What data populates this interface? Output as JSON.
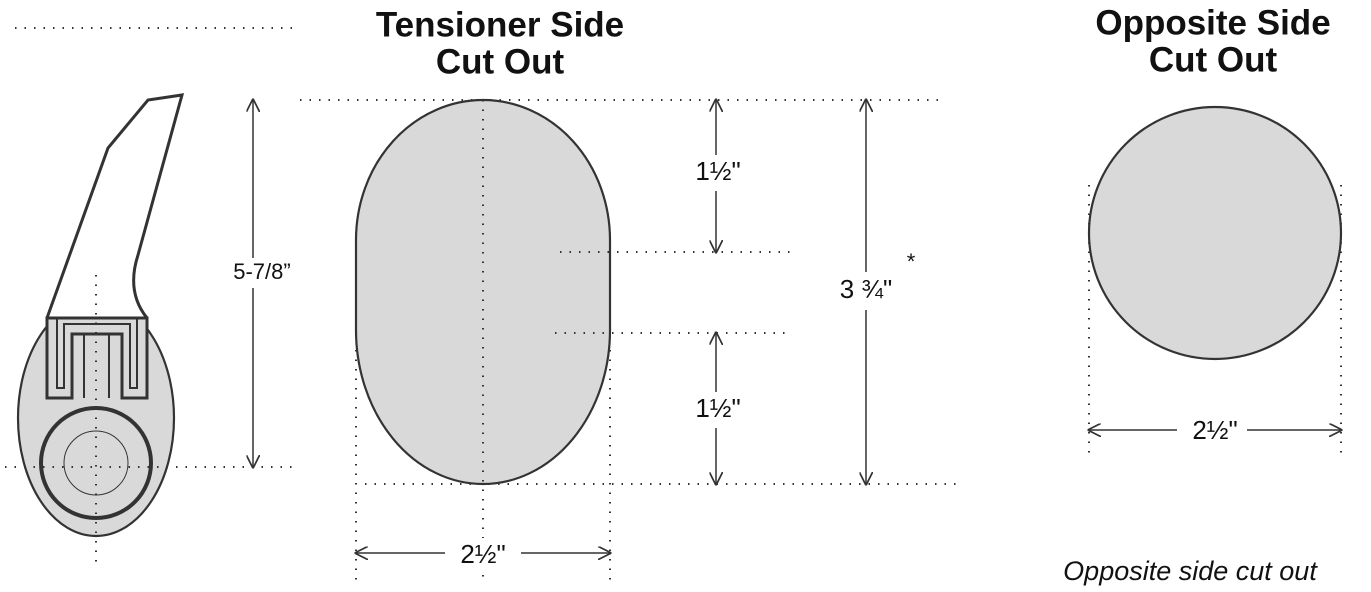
{
  "tensioner": {
    "title_line1": "Tensioner Side",
    "title_line2": "Cut Out",
    "arm_height": "5-7/8”",
    "upper_height": "1½\"",
    "lower_height": "1½\"",
    "total_height": "3 ¾\"",
    "note_mark": "*",
    "width": "2½\""
  },
  "opposite": {
    "title_line1": "Opposite Side",
    "title_line2": "Cut Out",
    "width": "2½\"",
    "caption": "Opposite side cut out"
  }
}
